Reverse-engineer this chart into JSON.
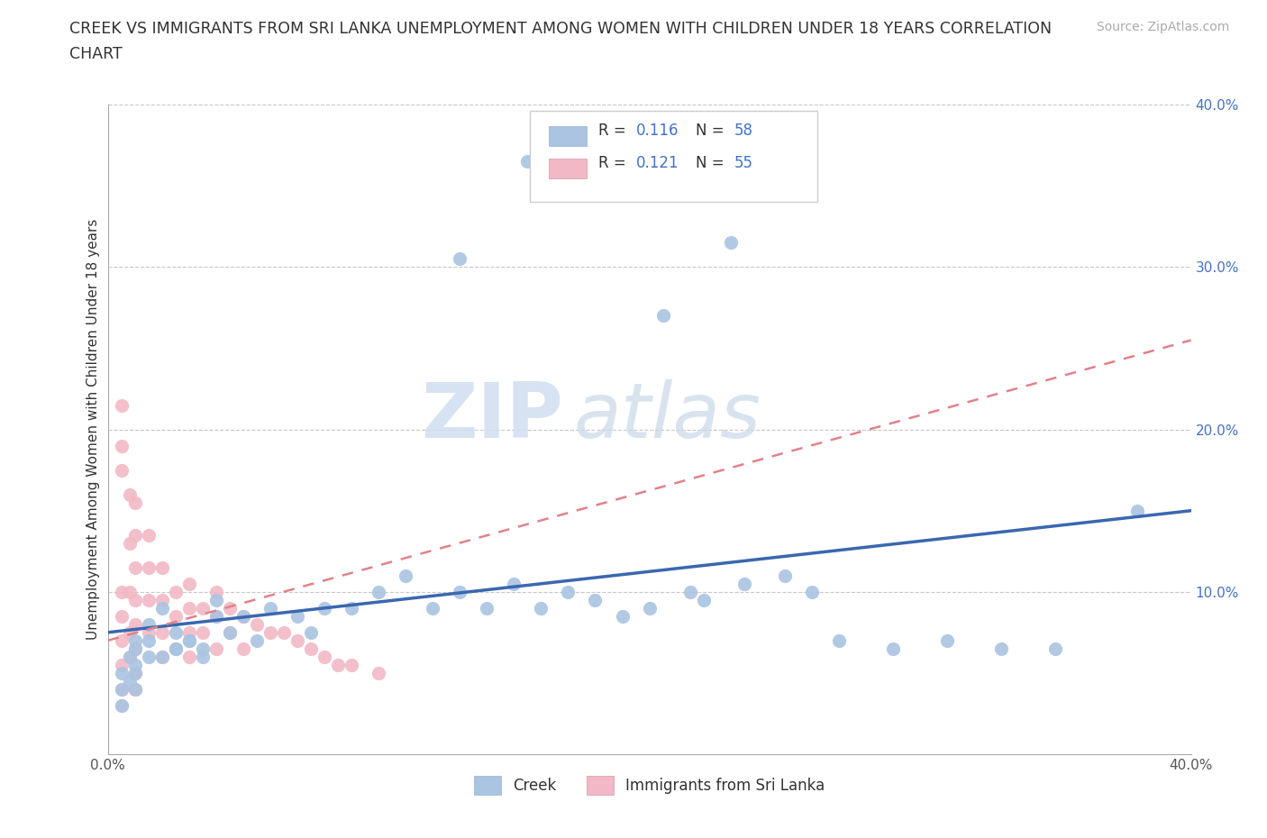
{
  "title_line1": "CREEK VS IMMIGRANTS FROM SRI LANKA UNEMPLOYMENT AMONG WOMEN WITH CHILDREN UNDER 18 YEARS CORRELATION",
  "title_line2": "CHART",
  "source": "Source: ZipAtlas.com",
  "ylabel": "Unemployment Among Women with Children Under 18 years",
  "creek_color": "#aac4e2",
  "sri_lanka_color": "#f2b8c6",
  "creek_line_color": "#3a67b0",
  "sri_lanka_line_color": "#e0828a",
  "creek_R": 0.116,
  "creek_N": 58,
  "sri_lanka_R": 0.121,
  "sri_lanka_N": 55,
  "watermark_zip": "ZIP",
  "watermark_atlas": "atlas",
  "xlim": [
    0.0,
    0.4
  ],
  "ylim": [
    0.0,
    0.4
  ],
  "xtick_positions": [
    0.0,
    0.1,
    0.2,
    0.3,
    0.4
  ],
  "xticklabels": [
    "0.0%",
    "",
    "",
    "",
    "40.0%"
  ],
  "ytick_positions": [
    0.1,
    0.2,
    0.3,
    0.4
  ],
  "yticklabels_right": [
    "10.0%",
    "20.0%",
    "30.0%",
    "40.0%"
  ],
  "creek_x": [
    0.155,
    0.23,
    0.205,
    0.13,
    0.01,
    0.01,
    0.01,
    0.015,
    0.015,
    0.02,
    0.025,
    0.025,
    0.03,
    0.035,
    0.04,
    0.04,
    0.045,
    0.05,
    0.055,
    0.06,
    0.07,
    0.075,
    0.08,
    0.09,
    0.1,
    0.11,
    0.12,
    0.13,
    0.14,
    0.15,
    0.16,
    0.17,
    0.18,
    0.19,
    0.2,
    0.215,
    0.22,
    0.235,
    0.25,
    0.26,
    0.27,
    0.29,
    0.31,
    0.33,
    0.35,
    0.005,
    0.005,
    0.005,
    0.008,
    0.008,
    0.01,
    0.01,
    0.015,
    0.02,
    0.025,
    0.03,
    0.035,
    0.38
  ],
  "creek_y": [
    0.365,
    0.315,
    0.27,
    0.305,
    0.07,
    0.055,
    0.04,
    0.08,
    0.06,
    0.09,
    0.075,
    0.065,
    0.07,
    0.065,
    0.085,
    0.095,
    0.075,
    0.085,
    0.07,
    0.09,
    0.085,
    0.075,
    0.09,
    0.09,
    0.1,
    0.11,
    0.09,
    0.1,
    0.09,
    0.105,
    0.09,
    0.1,
    0.095,
    0.085,
    0.09,
    0.1,
    0.095,
    0.105,
    0.11,
    0.1,
    0.07,
    0.065,
    0.07,
    0.065,
    0.065,
    0.05,
    0.04,
    0.03,
    0.06,
    0.045,
    0.065,
    0.05,
    0.07,
    0.06,
    0.065,
    0.07,
    0.06,
    0.15
  ],
  "sri_lanka_x": [
    0.005,
    0.005,
    0.005,
    0.005,
    0.005,
    0.005,
    0.005,
    0.005,
    0.005,
    0.008,
    0.008,
    0.008,
    0.008,
    0.008,
    0.01,
    0.01,
    0.01,
    0.01,
    0.01,
    0.01,
    0.01,
    0.01,
    0.015,
    0.015,
    0.015,
    0.015,
    0.02,
    0.02,
    0.02,
    0.02,
    0.025,
    0.025,
    0.025,
    0.03,
    0.03,
    0.03,
    0.03,
    0.035,
    0.035,
    0.04,
    0.04,
    0.04,
    0.045,
    0.045,
    0.05,
    0.05,
    0.055,
    0.06,
    0.065,
    0.07,
    0.075,
    0.08,
    0.085,
    0.09,
    0.1
  ],
  "sri_lanka_y": [
    0.215,
    0.19,
    0.175,
    0.1,
    0.085,
    0.07,
    0.055,
    0.04,
    0.03,
    0.16,
    0.13,
    0.1,
    0.075,
    0.06,
    0.155,
    0.135,
    0.115,
    0.095,
    0.08,
    0.065,
    0.05,
    0.04,
    0.135,
    0.115,
    0.095,
    0.075,
    0.115,
    0.095,
    0.075,
    0.06,
    0.1,
    0.085,
    0.065,
    0.105,
    0.09,
    0.075,
    0.06,
    0.09,
    0.075,
    0.1,
    0.085,
    0.065,
    0.09,
    0.075,
    0.085,
    0.065,
    0.08,
    0.075,
    0.075,
    0.07,
    0.065,
    0.06,
    0.055,
    0.055,
    0.05
  ]
}
